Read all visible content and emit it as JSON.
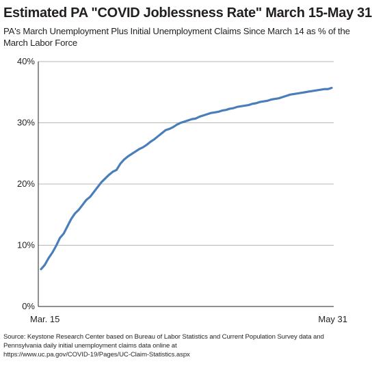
{
  "chart_data": {
    "type": "line",
    "title": "Estimated PA \"COVID Joblessness Rate\" March 15-May 31",
    "subtitle": "PA's March Unemployment Plus Initial Unemployment Claims Since March 14 as % of the March Labor Force",
    "xlabel": "",
    "ylabel": "",
    "x_tick_labels": [
      "Mar. 15",
      "May 31"
    ],
    "y_ticks": [
      {
        "value": 0,
        "label": "0%"
      },
      {
        "value": 10,
        "label": "10%"
      },
      {
        "value": 20,
        "label": "20%"
      },
      {
        "value": 30,
        "label": "30%"
      },
      {
        "value": 40,
        "label": "40%"
      }
    ],
    "ylim": [
      0,
      40
    ],
    "x_range": [
      "2020-03-15",
      "2020-05-31"
    ],
    "grid": true,
    "line_color": "#4a7ebb",
    "series": [
      {
        "x": [
          "2020-03-15",
          "2020-03-16",
          "2020-03-17",
          "2020-03-18",
          "2020-03-19",
          "2020-03-20",
          "2020-03-21",
          "2020-03-22",
          "2020-03-23",
          "2020-03-24",
          "2020-03-25",
          "2020-03-26",
          "2020-03-27",
          "2020-03-28",
          "2020-03-29",
          "2020-03-30",
          "2020-03-31",
          "2020-04-01",
          "2020-04-02",
          "2020-04-03",
          "2020-04-04",
          "2020-04-05",
          "2020-04-06",
          "2020-04-07",
          "2020-04-08",
          "2020-04-09",
          "2020-04-10",
          "2020-04-11",
          "2020-04-12",
          "2020-04-13",
          "2020-04-14",
          "2020-04-15",
          "2020-04-16",
          "2020-04-17",
          "2020-04-18",
          "2020-04-19",
          "2020-04-20",
          "2020-04-21",
          "2020-04-22",
          "2020-04-23",
          "2020-04-24",
          "2020-04-25",
          "2020-04-26",
          "2020-04-27",
          "2020-04-28",
          "2020-04-29",
          "2020-04-30",
          "2020-05-01",
          "2020-05-02",
          "2020-05-03",
          "2020-05-04",
          "2020-05-05",
          "2020-05-06",
          "2020-05-07",
          "2020-05-08",
          "2020-05-09",
          "2020-05-10",
          "2020-05-11",
          "2020-05-12",
          "2020-05-13",
          "2020-05-14",
          "2020-05-15",
          "2020-05-16",
          "2020-05-17",
          "2020-05-18",
          "2020-05-19",
          "2020-05-20",
          "2020-05-21",
          "2020-05-22",
          "2020-05-23",
          "2020-05-24",
          "2020-05-25",
          "2020-05-26",
          "2020-05-27",
          "2020-05-28",
          "2020-05-29",
          "2020-05-30",
          "2020-05-31"
        ],
        "values": [
          6.1,
          6.8,
          7.9,
          8.8,
          9.9,
          11.2,
          11.9,
          13.1,
          14.3,
          15.2,
          15.8,
          16.6,
          17.4,
          17.9,
          18.7,
          19.5,
          20.3,
          20.9,
          21.5,
          22.0,
          22.3,
          23.3,
          24.0,
          24.5,
          24.9,
          25.3,
          25.7,
          26.0,
          26.4,
          26.9,
          27.3,
          27.8,
          28.3,
          28.8,
          29.0,
          29.3,
          29.7,
          30.0,
          30.2,
          30.4,
          30.6,
          30.7,
          31.0,
          31.2,
          31.4,
          31.6,
          31.7,
          31.8,
          32.0,
          32.1,
          32.3,
          32.4,
          32.6,
          32.7,
          32.8,
          32.9,
          33.1,
          33.2,
          33.4,
          33.5,
          33.6,
          33.8,
          33.9,
          34.0,
          34.2,
          34.4,
          34.6,
          34.7,
          34.8,
          34.9,
          35.0,
          35.1,
          35.2,
          35.3,
          35.4,
          35.5,
          35.5,
          35.7
        ]
      }
    ]
  },
  "source": {
    "line1": "Source: Keystone Research Center based on Bureau of Labor Statistics and Current Population Survey data and",
    "line2": "Pennsylvania daily initial unemployment claims data online at",
    "line3": "https://www.uc.pa.gov/COVID-19/Pages/UC-Claim-Statistics.aspx"
  }
}
